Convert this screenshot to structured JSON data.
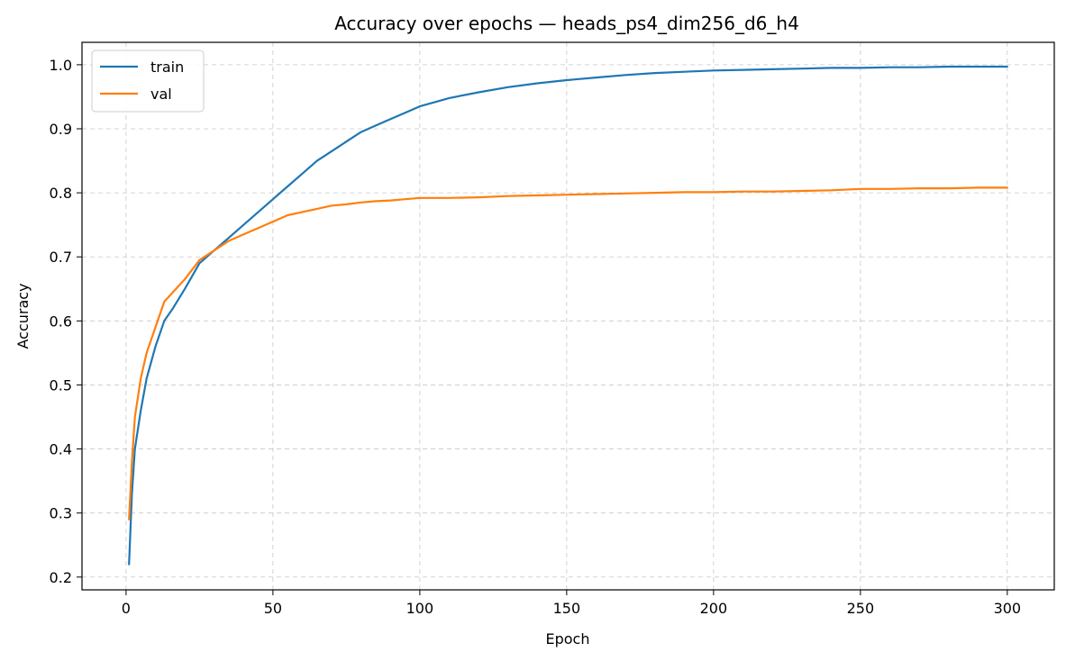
{
  "chart_data": {
    "type": "line",
    "title": "Accuracy over epochs — heads_ps4_dim256_d6_h4",
    "xlabel": "Epoch",
    "ylabel": "Accuracy",
    "xlim": [
      -15,
      316
    ],
    "ylim": [
      0.18,
      1.035
    ],
    "xticks": [
      0,
      50,
      100,
      150,
      200,
      250,
      300
    ],
    "yticks": [
      0.2,
      0.3,
      0.4,
      0.5,
      0.6,
      0.7,
      0.8,
      0.9,
      1.0
    ],
    "grid": true,
    "legend_position": "top-left",
    "series": [
      {
        "name": "train",
        "color": "#1f77b4",
        "x": [
          1,
          2,
          3,
          5,
          7,
          10,
          13,
          16,
          20,
          25,
          30,
          35,
          40,
          45,
          50,
          55,
          60,
          65,
          70,
          75,
          80,
          85,
          90,
          95,
          100,
          110,
          120,
          130,
          140,
          150,
          160,
          170,
          180,
          190,
          200,
          210,
          220,
          230,
          240,
          250,
          260,
          270,
          280,
          290,
          300
        ],
        "y": [
          0.22,
          0.33,
          0.4,
          0.46,
          0.51,
          0.56,
          0.6,
          0.62,
          0.65,
          0.69,
          0.71,
          0.73,
          0.75,
          0.77,
          0.79,
          0.81,
          0.83,
          0.85,
          0.865,
          0.88,
          0.895,
          0.905,
          0.915,
          0.925,
          0.935,
          0.948,
          0.957,
          0.965,
          0.971,
          0.976,
          0.98,
          0.984,
          0.987,
          0.989,
          0.991,
          0.992,
          0.993,
          0.994,
          0.995,
          0.995,
          0.996,
          0.996,
          0.997,
          0.997,
          0.997
        ]
      },
      {
        "name": "val",
        "color": "#ff7f0e",
        "x": [
          1,
          2,
          3,
          5,
          7,
          10,
          13,
          16,
          20,
          25,
          30,
          35,
          40,
          45,
          50,
          55,
          60,
          65,
          70,
          75,
          80,
          85,
          90,
          95,
          100,
          110,
          120,
          130,
          140,
          150,
          160,
          170,
          180,
          190,
          200,
          210,
          220,
          230,
          240,
          250,
          260,
          270,
          280,
          290,
          300
        ],
        "y": [
          0.29,
          0.38,
          0.45,
          0.51,
          0.55,
          0.59,
          0.63,
          0.645,
          0.665,
          0.695,
          0.71,
          0.725,
          0.735,
          0.745,
          0.755,
          0.765,
          0.77,
          0.775,
          0.78,
          0.782,
          0.785,
          0.787,
          0.788,
          0.79,
          0.792,
          0.792,
          0.793,
          0.795,
          0.796,
          0.797,
          0.798,
          0.799,
          0.8,
          0.801,
          0.801,
          0.802,
          0.802,
          0.803,
          0.804,
          0.806,
          0.806,
          0.807,
          0.807,
          0.808,
          0.808
        ]
      }
    ]
  }
}
